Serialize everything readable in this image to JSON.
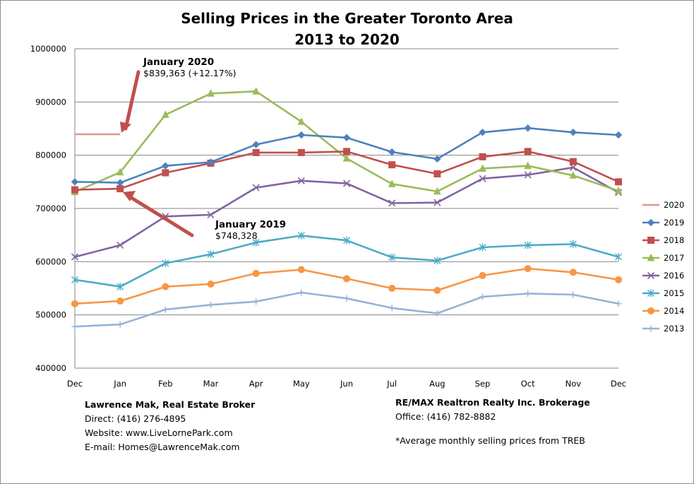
{
  "title": "Selling Prices in the Greater Toronto Area",
  "subtitle": "2013 to 2020",
  "chart_data": {
    "type": "line",
    "categories": [
      "Dec",
      "Jan",
      "Feb",
      "Mar",
      "Apr",
      "May",
      "Jun",
      "Jul",
      "Aug",
      "Sep",
      "Oct",
      "Nov",
      "Dec"
    ],
    "ylim": [
      400000,
      1000000
    ],
    "yticks": [
      "400000",
      "500000",
      "600000",
      "700000",
      "800000",
      "900000",
      "1000000"
    ],
    "grid": true,
    "legend_position": "right",
    "series": [
      {
        "name": "2020",
        "color": "#d99694",
        "marker": "none",
        "values": [
          839363,
          839363,
          null,
          null,
          null,
          null,
          null,
          null,
          null,
          null,
          null,
          null,
          null
        ]
      },
      {
        "name": "2019",
        "color": "#4f81bd",
        "marker": "diamond",
        "values": [
          750000,
          748328,
          780000,
          787000,
          820000,
          838000,
          833000,
          806000,
          793000,
          843000,
          851000,
          843000,
          838000
        ]
      },
      {
        "name": "2018",
        "color": "#c0504d",
        "marker": "square",
        "values": [
          735000,
          737000,
          767000,
          785000,
          805000,
          805000,
          807000,
          782000,
          765000,
          797000,
          807000,
          788000,
          750000
        ]
      },
      {
        "name": "2017",
        "color": "#9bbb59",
        "marker": "triangle",
        "values": [
          731000,
          768000,
          876000,
          916000,
          920000,
          863000,
          794000,
          746000,
          732000,
          775000,
          780000,
          762000,
          733000
        ]
      },
      {
        "name": "2016",
        "color": "#8064a2",
        "marker": "x",
        "values": [
          609000,
          631000,
          685000,
          688000,
          739000,
          752000,
          747000,
          710000,
          711000,
          756000,
          763000,
          777000,
          730000
        ]
      },
      {
        "name": "2015",
        "color": "#4bacc6",
        "marker": "star",
        "values": [
          566000,
          553000,
          597000,
          614000,
          636000,
          649000,
          640000,
          608000,
          602000,
          627000,
          631000,
          633000,
          609000
        ]
      },
      {
        "name": "2014",
        "color": "#f79646",
        "marker": "circle",
        "values": [
          521000,
          526000,
          553000,
          558000,
          578000,
          585000,
          568000,
          550000,
          546000,
          574000,
          587000,
          580000,
          566000
        ]
      },
      {
        "name": "2013",
        "color": "#95b3d7",
        "marker": "plus",
        "values": [
          478000,
          482000,
          510000,
          519000,
          525000,
          542000,
          531000,
          513000,
          503000,
          534000,
          540000,
          538000,
          521000
        ]
      }
    ],
    "annotations": [
      {
        "title": "January 2020",
        "text": "$839,363 (+12.17%)"
      },
      {
        "title": "January 2019",
        "text": "$748,328"
      }
    ]
  },
  "footer": {
    "left": {
      "name": "Lawrence Mak, Real Estate Broker",
      "direct": "Direct:  (416)  276-4895",
      "website": "Website:  www.LiveLornePark.com",
      "email": "E-mail:  Homes@LawrenceMak.com"
    },
    "right": {
      "brokerage": "RE/MAX Realtron Realty Inc. Brokerage",
      "office": "Office: (416)  782-8882",
      "note": "*Average monthly selling prices from TREB"
    }
  }
}
